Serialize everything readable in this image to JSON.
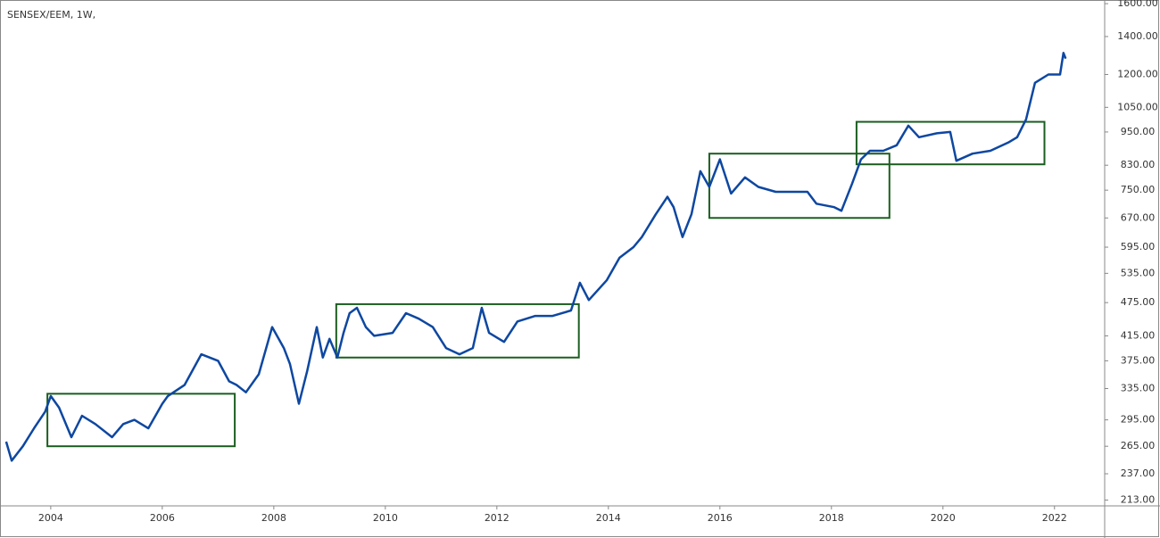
{
  "chart_data": {
    "type": "line",
    "title": "SENSEX/EEM, 1W,",
    "log_scale": true,
    "grid": false,
    "color": "#0d47a1",
    "x": [
      2003.2,
      2003.3,
      2003.5,
      2003.7,
      2003.9,
      2004.0,
      2004.15,
      2004.37,
      2004.56,
      2004.8,
      2005.1,
      2005.3,
      2005.5,
      2005.75,
      2006.0,
      2006.1,
      2006.4,
      2006.7,
      2007.0,
      2007.2,
      2007.33,
      2007.5,
      2007.73,
      2007.97,
      2008.18,
      2008.29,
      2008.45,
      2008.6,
      2008.77,
      2008.88,
      2009.0,
      2009.14,
      2009.25,
      2009.36,
      2009.49,
      2009.65,
      2009.8,
      2010.13,
      2010.37,
      2010.6,
      2010.85,
      2011.09,
      2011.33,
      2011.57,
      2011.73,
      2011.86,
      2012.13,
      2012.37,
      2012.69,
      2013.0,
      2013.33,
      2013.49,
      2013.65,
      2013.97,
      2014.2,
      2014.45,
      2014.6,
      2014.85,
      2015.06,
      2015.17,
      2015.33,
      2015.49,
      2015.65,
      2015.81,
      2016.0,
      2016.2,
      2016.45,
      2016.69,
      2017.0,
      2017.33,
      2017.57,
      2017.73,
      2018.05,
      2018.18,
      2018.37,
      2018.53,
      2018.69,
      2018.93,
      2019.17,
      2019.38,
      2019.57,
      2019.89,
      2020.13,
      2020.24,
      2020.53,
      2020.85,
      2021.17,
      2021.33,
      2021.49,
      2021.65,
      2021.89,
      2022.1,
      2022.16,
      2022.2
    ],
    "values": [
      270,
      250,
      265,
      285,
      305,
      325,
      310,
      275,
      300,
      290,
      275,
      290,
      295,
      285,
      315,
      325,
      340,
      385,
      375,
      345,
      340,
      330,
      355,
      430,
      395,
      370,
      315,
      360,
      430,
      380,
      410,
      380,
      420,
      455,
      465,
      430,
      415,
      420,
      455,
      445,
      430,
      395,
      385,
      395,
      465,
      420,
      405,
      440,
      450,
      450,
      460,
      515,
      480,
      520,
      570,
      595,
      620,
      680,
      730,
      700,
      620,
      680,
      810,
      760,
      850,
      740,
      790,
      760,
      745,
      745,
      745,
      710,
      700,
      690,
      770,
      850,
      880,
      880,
      900,
      975,
      930,
      945,
      950,
      845,
      870,
      880,
      910,
      930,
      1000,
      1160,
      1200,
      1200,
      1310,
      1280
    ],
    "xlim": [
      2003.09,
      2022.9
    ],
    "xticks": [
      2004,
      2006,
      2008,
      2010,
      2012,
      2014,
      2016,
      2018,
      2020,
      2022
    ],
    "ylim": [
      208,
      1624
    ],
    "yticks": [
      {
        "value": 213,
        "label": "213.00"
      },
      {
        "value": 237,
        "label": "237.00"
      },
      {
        "value": 265,
        "label": "265.00"
      },
      {
        "value": 295,
        "label": "295.00"
      },
      {
        "value": 335,
        "label": "335.00"
      },
      {
        "value": 375,
        "label": "375.00"
      },
      {
        "value": 415,
        "label": "415.00"
      },
      {
        "value": 475,
        "label": "475.00"
      },
      {
        "value": 535,
        "label": "535.00"
      },
      {
        "value": 595,
        "label": "595.00"
      },
      {
        "value": 670,
        "label": "670.00"
      },
      {
        "value": 750,
        "label": "750.00"
      },
      {
        "value": 830,
        "label": "830.00"
      },
      {
        "value": 950,
        "label": "950.00"
      },
      {
        "value": 1050,
        "label": "1050.00"
      },
      {
        "value": 1200,
        "label": "1200.00"
      },
      {
        "value": 1400,
        "label": "1400.00"
      },
      {
        "value": 1600,
        "label": "1600.00"
      }
    ],
    "box_color": "#1b5e20",
    "boxes": [
      {
        "x": [
          2003.94,
          2007.3
        ],
        "y": [
          265,
          328
        ]
      },
      {
        "x": [
          2009.12,
          2013.47
        ],
        "y": [
          380,
          472
        ]
      },
      {
        "x": [
          2015.81,
          2019.04
        ],
        "y": [
          670,
          870
        ]
      },
      {
        "x": [
          2018.45,
          2021.82
        ],
        "y": [
          833,
          990
        ]
      }
    ]
  }
}
